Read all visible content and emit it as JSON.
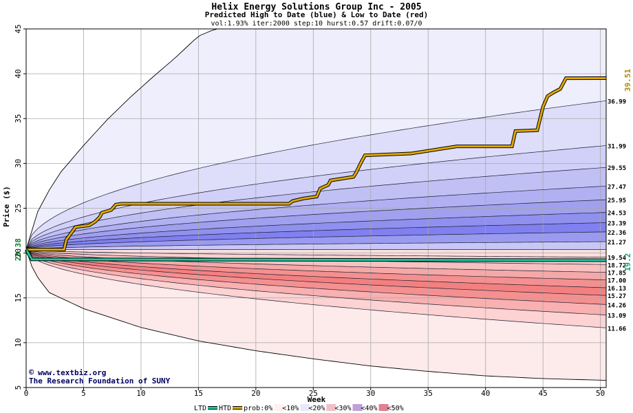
{
  "chart_data": {
    "type": "area",
    "title": "Helix Energy Solutions Group Inc - 2005",
    "subtitle": "Predicted High to Date (blue) &  Low to Date (red)",
    "params": "vol:1.93% iter:2000 step:10 hurst:0.57 drift:0.07/0",
    "xlabel": "Week",
    "ylabel": "Price ($)",
    "xlim": [
      0,
      50.5
    ],
    "ylim": [
      5,
      45
    ],
    "x_ticks": [
      0,
      5,
      10,
      15,
      20,
      25,
      30,
      35,
      40,
      45,
      50
    ],
    "y_ticks": [
      5,
      10,
      15,
      20,
      25,
      30,
      35,
      40,
      45
    ],
    "start_price": "20.38",
    "start_price_value": 20.38,
    "htd_end_label": "39.51",
    "htd_end_value": 39.51,
    "ltd_end_label": "19.2",
    "ltd_end_value": 19.2,
    "upper_band_labels": [
      "36.99",
      "31.99",
      "29.55",
      "27.47",
      "25.95",
      "24.53",
      "23.39",
      "22.36",
      "21.27"
    ],
    "upper_band_values": [
      36.99,
      31.99,
      29.55,
      27.47,
      25.95,
      24.53,
      23.39,
      22.36,
      21.27
    ],
    "upper_outer_envelope": [
      [
        0,
        20.38
      ],
      [
        1,
        24.6
      ],
      [
        2,
        27.0
      ],
      [
        3,
        29.0
      ],
      [
        5,
        32.0
      ],
      [
        7,
        34.8
      ],
      [
        9,
        37.3
      ],
      [
        11,
        39.6
      ],
      [
        13,
        41.8
      ],
      [
        15,
        44.2
      ],
      [
        16.5,
        45
      ]
    ],
    "lower_band_labels": [
      "19.54",
      "18.72",
      "17.85",
      "17.00",
      "16.13",
      "15.27",
      "14.26",
      "13.09",
      "11.66"
    ],
    "lower_band_values": [
      19.54,
      18.72,
      17.85,
      17.0,
      16.13,
      15.27,
      14.26,
      13.09,
      11.66
    ],
    "lower_outer_envelope": [
      [
        0,
        20.38
      ],
      [
        0.5,
        18.5
      ],
      [
        1,
        17.3
      ],
      [
        2,
        15.6
      ],
      [
        5,
        13.8
      ],
      [
        10,
        11.7
      ],
      [
        15,
        10.2
      ],
      [
        20,
        9.1
      ],
      [
        25,
        8.2
      ],
      [
        30,
        7.4
      ],
      [
        35,
        6.8
      ],
      [
        40,
        6.3
      ],
      [
        45,
        6.0
      ],
      [
        50.5,
        5.8
      ]
    ],
    "series": [
      {
        "name": "HTD",
        "color": "#e0a800",
        "points": [
          [
            0,
            20.38
          ],
          [
            3.3,
            20.38
          ],
          [
            3.5,
            21.5
          ],
          [
            4.3,
            22.9
          ],
          [
            5.5,
            23.1
          ],
          [
            6.0,
            23.5
          ],
          [
            6.4,
            24.0
          ],
          [
            6.6,
            24.5
          ],
          [
            7.4,
            24.8
          ],
          [
            7.8,
            25.4
          ],
          [
            8.3,
            25.5
          ],
          [
            22.9,
            25.5
          ],
          [
            23.2,
            25.8
          ],
          [
            24.2,
            26.1
          ],
          [
            25.3,
            26.3
          ],
          [
            25.6,
            27.2
          ],
          [
            26.3,
            27.6
          ],
          [
            26.5,
            28.1
          ],
          [
            27.5,
            28.3
          ],
          [
            28.5,
            28.5
          ],
          [
            28.7,
            28.9
          ],
          [
            29.2,
            30.2
          ],
          [
            29.5,
            30.9
          ],
          [
            33.5,
            31.1
          ],
          [
            37.5,
            31.9
          ],
          [
            42.3,
            31.9
          ],
          [
            42.6,
            33.6
          ],
          [
            44.5,
            33.7
          ],
          [
            45.0,
            36.3
          ],
          [
            45.4,
            37.5
          ],
          [
            45.9,
            37.9
          ],
          [
            46.5,
            38.3
          ],
          [
            47.0,
            39.5
          ],
          [
            50.5,
            39.51
          ]
        ]
      },
      {
        "name": "LTD",
        "color": "#20c9a0",
        "points": [
          [
            0,
            20.38
          ],
          [
            0.5,
            19.3
          ],
          [
            50.5,
            19.2
          ]
        ]
      }
    ],
    "legend": {
      "labels": [
        "LTD",
        "HTD",
        "prob:0%",
        "<10%",
        "<20%",
        "<30%",
        "<40%",
        "<50%"
      ],
      "colors": [
        "#20c9a0",
        "#e0a800",
        "#ffffff",
        "#fff0f0",
        "#e8e8fc",
        "#f0c0c8",
        "#c0a0d8",
        "#e08090"
      ],
      "position": "bottom"
    },
    "grid": true
  },
  "watermark": {
    "site": "www.textbiz.org",
    "org": "The Research Foundation of SUNY"
  }
}
